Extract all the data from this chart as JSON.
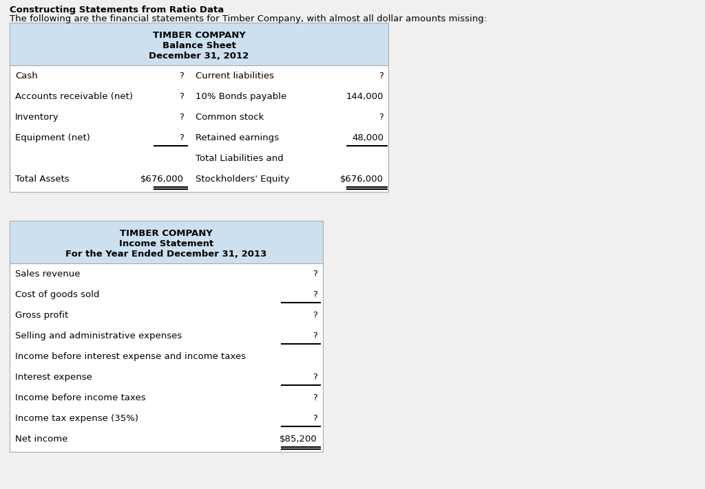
{
  "title": "Constructing Statements from Ratio Data",
  "subtitle": "The following are the financial statements for Timber Company, with almost all dollar amounts missing:",
  "bg_color": "#f0f0f0",
  "table_bg": "#ffffff",
  "header_bg": "#cce0f0",
  "border_color": "#aaaaaa",
  "title_fontsize": 9.5,
  "subtitle_fontsize": 9.5,
  "body_fontsize": 9.5,
  "header_fontsize": 9.5,
  "bs_header": [
    "TIMBER COMPANY",
    "Balance Sheet",
    "December 31, 2012"
  ],
  "bs_rows": [
    [
      "Cash",
      "?",
      "Current liabilities",
      "?"
    ],
    [
      "Accounts receivable (net)",
      "?",
      "10% Bonds payable",
      "144,000"
    ],
    [
      "Inventory",
      "?",
      "Common stock",
      "?"
    ],
    [
      "Equipment (net)",
      "?",
      "Retained earnings",
      "48,000"
    ],
    [
      "",
      "",
      "Total Liabilities and",
      ""
    ],
    [
      "Total Assets",
      "$676,000",
      "Stockholders' Equity",
      "$676,000"
    ]
  ],
  "bs_single_underline": [
    3
  ],
  "bs_double_underline": [
    5
  ],
  "is_header": [
    "TIMBER COMPANY",
    "Income Statement",
    "For the Year Ended December 31, 2013"
  ],
  "is_rows": [
    [
      "Sales revenue",
      "?"
    ],
    [
      "Cost of goods sold",
      "?"
    ],
    [
      "Gross profit",
      "?"
    ],
    [
      "Selling and administrative expenses",
      "?"
    ],
    [
      "Income before interest expense and income taxes",
      ""
    ],
    [
      "Interest expense",
      "?"
    ],
    [
      "Income before income taxes",
      "?"
    ],
    [
      "Income tax expense (35%)",
      "?"
    ],
    [
      "Net income",
      "$85,200"
    ]
  ],
  "is_single_underline": [
    1,
    3,
    5,
    7
  ],
  "is_double_underline": [
    8
  ]
}
